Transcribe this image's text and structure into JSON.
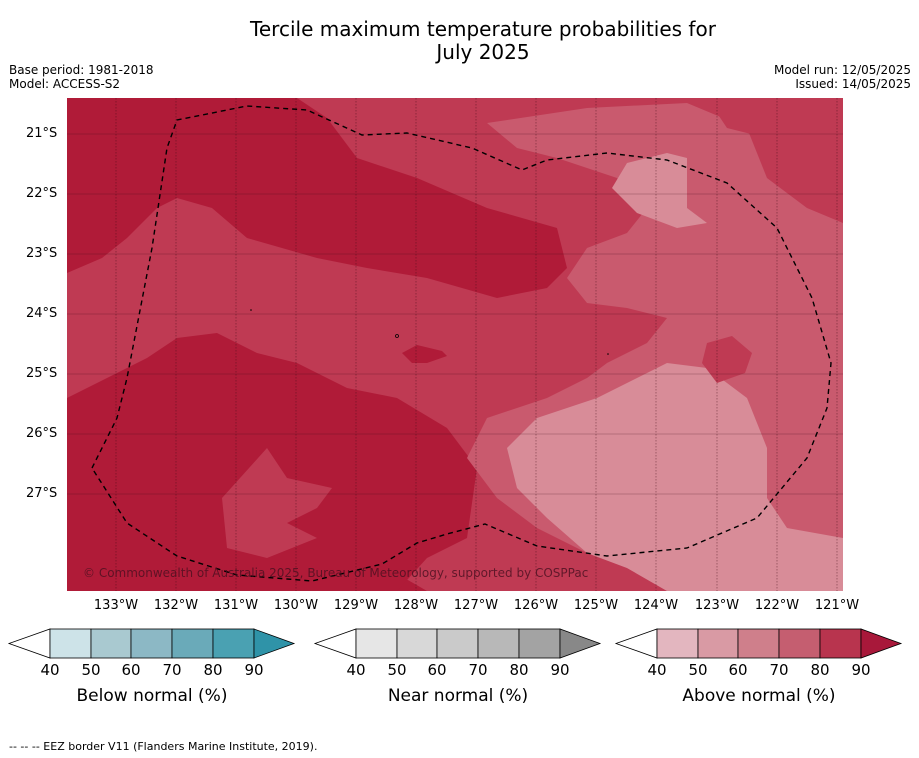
{
  "title": {
    "line1": "Tercile maximum temperature probabilities for",
    "line2": "July 2025"
  },
  "meta": {
    "base_period": "Base period: 1981-2018",
    "model": "Model: ACCESS-S2",
    "model_run": "Model run: 12/05/2025",
    "issued": "Issued: 14/05/2025"
  },
  "map": {
    "lat_labels": [
      "21°S",
      "22°S",
      "23°S",
      "24°S",
      "25°S",
      "26°S",
      "27°S"
    ],
    "lon_labels": [
      "133°W",
      "132°W",
      "131°W",
      "130°W",
      "129°W",
      "128°W",
      "127°W",
      "126°W",
      "125°W",
      "124°W",
      "123°W",
      "122°W",
      "121°W"
    ],
    "copyright": "© Commonwealth of Australia 2025, Bureau of Meteorology, supported by COSPPac",
    "colors": {
      "level90": "#b01b38",
      "level80": "#bf3a53",
      "level70": "#c95a6e",
      "level60": "#d88c98"
    }
  },
  "colorbars": [
    {
      "label": "Below normal (%)",
      "ticks": [
        "40",
        "50",
        "60",
        "70",
        "80",
        "90"
      ],
      "colors": [
        "#ffffff",
        "#cde3e8",
        "#a9c9d0",
        "#8cb8c5",
        "#6aaab9",
        "#4aa1b2",
        "#2f93a8"
      ]
    },
    {
      "label": "Near normal (%)",
      "ticks": [
        "40",
        "50",
        "60",
        "70",
        "80",
        "90"
      ],
      "colors": [
        "#ffffff",
        "#e6e6e6",
        "#d8d8d8",
        "#cacaca",
        "#b8b8b8",
        "#a3a3a3",
        "#888888"
      ]
    },
    {
      "label": "Above normal (%)",
      "ticks": [
        "40",
        "50",
        "60",
        "70",
        "80",
        "90"
      ],
      "colors": [
        "#ffffff",
        "#e3b6bf",
        "#d99aa4",
        "#cf7f8b",
        "#c55e70",
        "#b8344e",
        "#a8183a"
      ]
    }
  ],
  "footnote": "-- -- -- EEZ border V11 (Flanders Marine Institute, 2019)."
}
